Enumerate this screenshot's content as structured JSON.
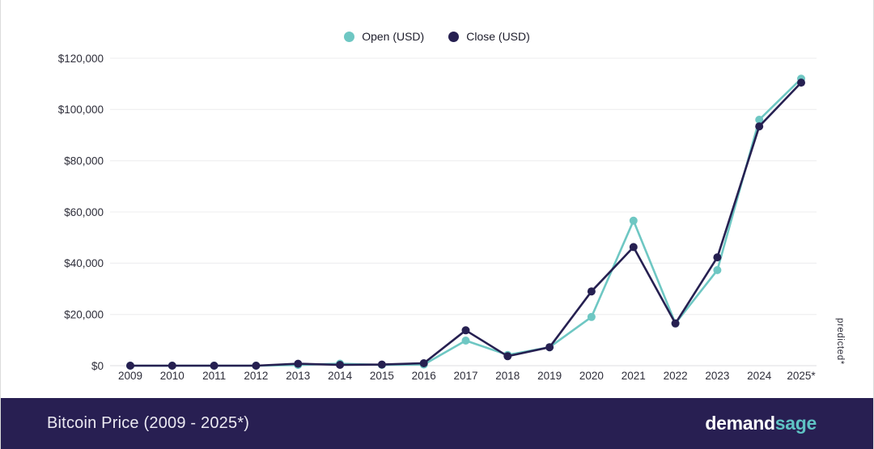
{
  "legend": {
    "items": [
      {
        "label": "Open (USD)",
        "color": "#6ec7c3"
      },
      {
        "label": "Close (USD)",
        "color": "#262051"
      }
    ]
  },
  "chart_data": {
    "type": "line",
    "title": "Bitcoin Price (2009 - 2025*)",
    "categories": [
      "2009",
      "2010",
      "2011",
      "2012",
      "2013",
      "2014",
      "2015",
      "2016",
      "2017",
      "2018",
      "2019",
      "2020",
      "2021",
      "2022",
      "2023",
      "2024",
      "2025*"
    ],
    "series": [
      {
        "id": "open",
        "name": "Open (USD)",
        "color": "#6ec7c3",
        "values": [
          0,
          0,
          0,
          5,
          300,
          800,
          315,
          430,
          9800,
          4200,
          7200,
          19000,
          56600,
          16500,
          37300,
          96000,
          112000
        ]
      },
      {
        "id": "close",
        "name": "Close (USD)",
        "color": "#262051",
        "values": [
          0,
          0,
          5,
          13,
          750,
          320,
          430,
          960,
          13800,
          3700,
          7200,
          29000,
          46300,
          16500,
          42300,
          93400,
          110500
        ]
      }
    ],
    "ylim": [
      0,
      120000
    ],
    "yticks": [
      {
        "value": 0,
        "label": "$0"
      },
      {
        "value": 20000,
        "label": "$20,000"
      },
      {
        "value": 40000,
        "label": "$40,000"
      },
      {
        "value": 60000,
        "label": "$60,000"
      },
      {
        "value": 80000,
        "label": "$80,000"
      },
      {
        "value": 100000,
        "label": "$100,000"
      },
      {
        "value": 120000,
        "label": "$120,000"
      }
    ],
    "grid": "horizontal",
    "legend_position": "top-center",
    "annotation": "predicted*"
  },
  "footer": {
    "title": "Bitcoin Price (2009 - 2025*)",
    "brand": {
      "part1": "demand",
      "part2": "sage",
      "part2_color": "#5fc3c4"
    }
  }
}
